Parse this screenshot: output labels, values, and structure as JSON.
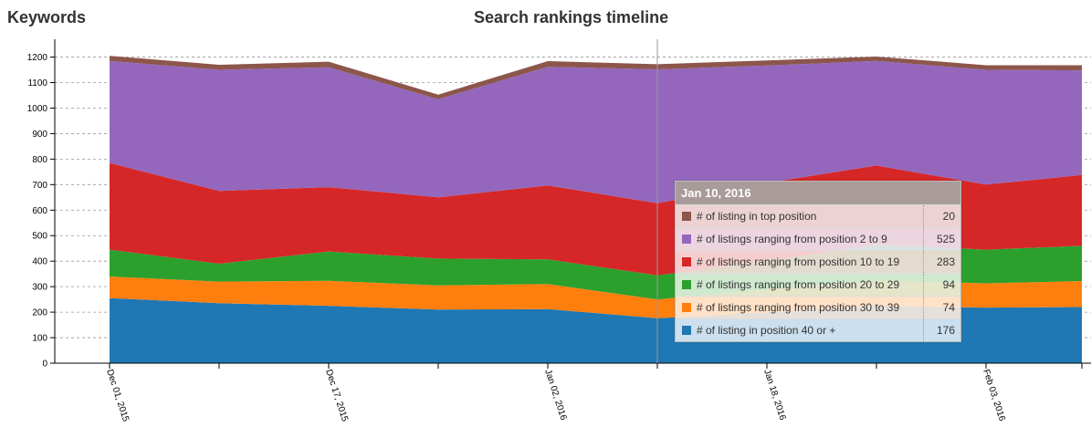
{
  "page": {
    "heading": "Keywords",
    "chart_title": "Search rankings timeline"
  },
  "tooltip": {
    "date": "Jan 10, 2016",
    "rows": [
      {
        "label": "# of listing in top position",
        "value": "20",
        "color": "#8c564b"
      },
      {
        "label": "# of listings ranging from position 2 to 9",
        "value": "525",
        "color": "#9467bd"
      },
      {
        "label": "# of listings ranging from position 10 to 19",
        "value": "283",
        "color": "#d62728"
      },
      {
        "label": "# of listings ranging from position 20 to 29",
        "value": "94",
        "color": "#2ca02c"
      },
      {
        "label": "# of listings ranging from position 30 to 39",
        "value": "74",
        "color": "#ff7f0e"
      },
      {
        "label": "# of listing in position 40 or +",
        "value": "176",
        "color": "#1f77b4"
      }
    ]
  },
  "chart_data": {
    "type": "area",
    "stacked": true,
    "title": "Search rankings timeline",
    "x": [
      "2015-12-01",
      "2015-12-09",
      "2015-12-17",
      "2015-12-25",
      "2016-01-02",
      "2016-01-10",
      "2016-01-18",
      "2016-01-26",
      "2016-02-03",
      "2016-02-10"
    ],
    "x_tick_labels": [
      {
        "date": "2015-12-01",
        "label": "Dec 01, 2015"
      },
      {
        "date": "2015-12-17",
        "label": "Dec 17, 2015"
      },
      {
        "date": "2016-01-02",
        "label": "Jan 02, 2016"
      },
      {
        "date": "2016-01-18",
        "label": "Jan 18, 2016"
      },
      {
        "date": "2016-02-03",
        "label": "Feb 03, 2016"
      }
    ],
    "ylim": [
      0,
      1270
    ],
    "y_ticks": [
      0,
      100,
      200,
      300,
      400,
      500,
      600,
      700,
      800,
      900,
      1000,
      1100,
      1200
    ],
    "grid": "horizontal-dashed",
    "highlight_date": "2016-01-10",
    "series": [
      {
        "name": "# of listing in position 40 or +",
        "color": "#1f77b4",
        "values": [
          255,
          235,
          225,
          210,
          212,
          176,
          200,
          225,
          218,
          220
        ]
      },
      {
        "name": "# of listings ranging from position 30 to 39",
        "color": "#ff7f0e",
        "values": [
          85,
          85,
          98,
          95,
          98,
          74,
          90,
          100,
          95,
          102
        ]
      },
      {
        "name": "# of listings ranging from position 20 to 29",
        "color": "#2ca02c",
        "values": [
          105,
          70,
          115,
          105,
          97,
          94,
          112,
          140,
          132,
          138
        ]
      },
      {
        "name": "# of listings ranging from position 10 to 19",
        "color": "#d62728",
        "values": [
          340,
          285,
          252,
          240,
          290,
          283,
          305,
          310,
          255,
          278
        ]
      },
      {
        "name": "# of listings ranging from position 2 to 9",
        "color": "#9467bd",
        "values": [
          400,
          475,
          470,
          385,
          465,
          525,
          460,
          410,
          450,
          410
        ]
      },
      {
        "name": "# of listing in top position",
        "color": "#8c564b",
        "values": [
          20,
          20,
          22,
          18,
          22,
          20,
          20,
          17,
          18,
          20
        ]
      }
    ]
  }
}
